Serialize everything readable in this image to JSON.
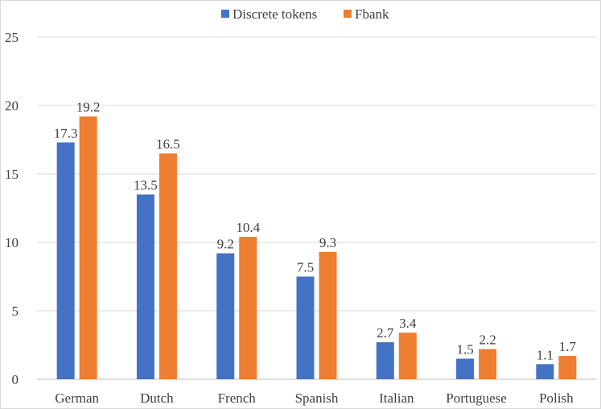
{
  "chart_data": {
    "type": "bar",
    "title": "",
    "xlabel": "",
    "ylabel": "",
    "categories": [
      "German",
      "Dutch",
      "French",
      "Spanish",
      "Italian",
      "Portuguese",
      "Polish"
    ],
    "series": [
      {
        "name": "Discrete tokens",
        "color": "#4472c4",
        "values": [
          17.3,
          13.5,
          9.2,
          7.5,
          2.7,
          1.5,
          1.1
        ]
      },
      {
        "name": "Fbank",
        "color": "#ed7d31",
        "values": [
          19.2,
          16.5,
          10.4,
          9.3,
          3.4,
          2.2,
          1.7
        ]
      }
    ],
    "ylim": [
      0,
      25
    ],
    "yticks": [
      0,
      5,
      10,
      15,
      20,
      25
    ],
    "grid": true,
    "legend_position": "top-center",
    "data_labels": true
  }
}
